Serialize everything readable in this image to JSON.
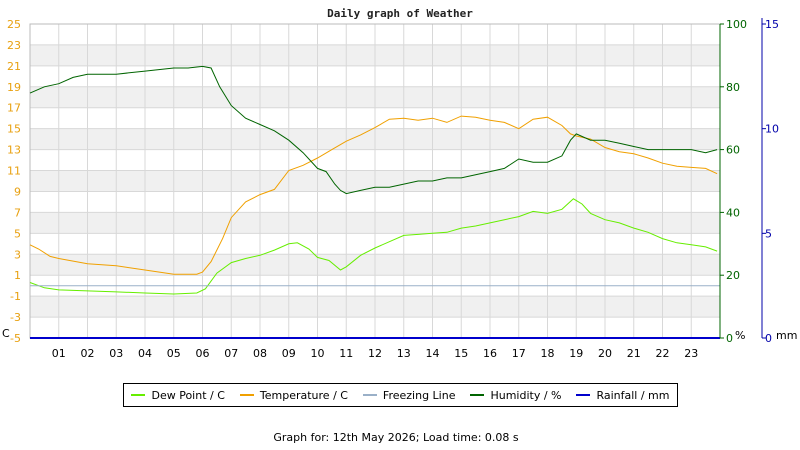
{
  "chart_data": {
    "type": "line",
    "title": "Daily graph of Weather",
    "x_ticks": [
      "01",
      "02",
      "03",
      "04",
      "05",
      "06",
      "07",
      "08",
      "09",
      "10",
      "11",
      "12",
      "13",
      "14",
      "15",
      "16",
      "17",
      "18",
      "19",
      "20",
      "21",
      "22",
      "23"
    ],
    "x_range": [
      0,
      24
    ],
    "y_left": {
      "unit": "C",
      "range": [
        -5,
        25
      ],
      "ticks": [
        "-5",
        "-3",
        "-1",
        "1",
        "3",
        "5",
        "7",
        "9",
        "11",
        "13",
        "15",
        "17",
        "19",
        "21",
        "23",
        "25"
      ],
      "color": "#e8a010"
    },
    "y_right_humidity": {
      "unit": "%",
      "range": [
        0,
        100
      ],
      "ticks": [
        "0",
        "20",
        "40",
        "60",
        "80",
        "100"
      ],
      "color": "#006400"
    },
    "y_right_rain": {
      "unit": "mm",
      "range": [
        0,
        15
      ],
      "ticks": [
        "0",
        "5",
        "10",
        "15"
      ],
      "color": "#0000aa"
    },
    "grid": true,
    "legend_position": "bottom",
    "series": [
      {
        "name": "Dew Point / C",
        "axis": "left",
        "color": "#66ee00",
        "x": [
          0,
          0.5,
          1,
          2,
          3,
          4,
          5,
          5.8,
          6.1,
          6.5,
          7,
          7.5,
          8,
          8.5,
          9,
          9.3,
          9.7,
          10,
          10.4,
          10.8,
          11,
          11.5,
          12,
          12.5,
          13,
          13.5,
          14,
          14.5,
          15,
          15.5,
          16,
          16.5,
          17,
          17.5,
          18,
          18.5,
          18.9,
          19.2,
          19.5,
          20,
          20.5,
          21,
          21.5,
          22,
          22.5,
          23,
          23.5,
          23.9
        ],
        "y": [
          0.3,
          -0.2,
          -0.4,
          -0.5,
          -0.6,
          -0.7,
          -0.8,
          -0.7,
          -0.3,
          1.2,
          2.2,
          2.6,
          2.9,
          3.4,
          4,
          4.1,
          3.5,
          2.7,
          2.4,
          1.5,
          1.8,
          2.9,
          3.6,
          4.2,
          4.8,
          4.9,
          5,
          5.1,
          5.5,
          5.7,
          6,
          6.3,
          6.6,
          7.1,
          6.9,
          7.3,
          8.3,
          7.8,
          6.9,
          6.3,
          6,
          5.5,
          5.1,
          4.5,
          4.1,
          3.9,
          3.7,
          3.3
        ]
      },
      {
        "name": "Temperature / C",
        "axis": "left",
        "color": "#f0a000",
        "x": [
          0,
          0.3,
          0.7,
          1,
          2,
          3,
          4,
          5,
          5.8,
          6,
          6.3,
          6.7,
          7,
          7.5,
          8,
          8.5,
          9,
          9.5,
          10,
          10.5,
          11,
          11.5,
          12,
          12.5,
          13,
          13.5,
          14,
          14.5,
          15,
          15.5,
          16,
          16.5,
          17,
          17.5,
          18,
          18.5,
          18.8,
          19,
          19.5,
          20,
          20.5,
          21,
          21.5,
          22,
          22.5,
          23,
          23.5,
          23.9
        ],
        "y": [
          3.9,
          3.5,
          2.8,
          2.6,
          2.1,
          1.9,
          1.5,
          1.1,
          1.1,
          1.3,
          2.3,
          4.5,
          6.5,
          8,
          8.7,
          9.2,
          11,
          11.5,
          12.2,
          13,
          13.8,
          14.4,
          15.1,
          15.9,
          16,
          15.8,
          16,
          15.6,
          16.2,
          16.1,
          15.8,
          15.6,
          15,
          15.9,
          16.1,
          15.3,
          14.5,
          14.3,
          14,
          13.2,
          12.8,
          12.6,
          12.2,
          11.7,
          11.4,
          11.3,
          11.2,
          10.7
        ]
      },
      {
        "name": "Freezing Line",
        "axis": "left",
        "color": "#9ab0c8",
        "x": [
          0,
          24
        ],
        "y": [
          0,
          0
        ]
      },
      {
        "name": "Humidity / %",
        "axis": "humidity",
        "color": "#006400",
        "x": [
          0,
          0.5,
          1,
          1.5,
          2,
          3,
          4,
          5,
          5.5,
          6,
          6.3,
          6.6,
          7,
          7.5,
          8,
          8.5,
          9,
          9.5,
          10,
          10.3,
          10.6,
          10.8,
          11,
          11.5,
          12,
          12.5,
          13,
          13.5,
          14,
          14.5,
          15,
          15.5,
          16,
          16.5,
          17,
          17.5,
          18,
          18.5,
          18.8,
          19,
          19.5,
          20,
          20.5,
          21,
          21.5,
          22,
          22.5,
          23,
          23.5,
          23.9
        ],
        "y": [
          78,
          80,
          81,
          83,
          84,
          84,
          85,
          86,
          86,
          86.5,
          86,
          80,
          74,
          70,
          68,
          66,
          63,
          59,
          54,
          53,
          49,
          47,
          46,
          47,
          48,
          48,
          49,
          50,
          50,
          51,
          51,
          52,
          53,
          54,
          57,
          56,
          56,
          58,
          63,
          65,
          63,
          63,
          62,
          61,
          60,
          60,
          60,
          60,
          59,
          60
        ]
      },
      {
        "name": "Rainfall / mm",
        "axis": "rain",
        "color": "#0000cc",
        "x": [
          0,
          24
        ],
        "y": [
          0,
          0
        ]
      }
    ]
  },
  "footer": "Graph for: 12th May 2026; Load time: 0.08 s"
}
